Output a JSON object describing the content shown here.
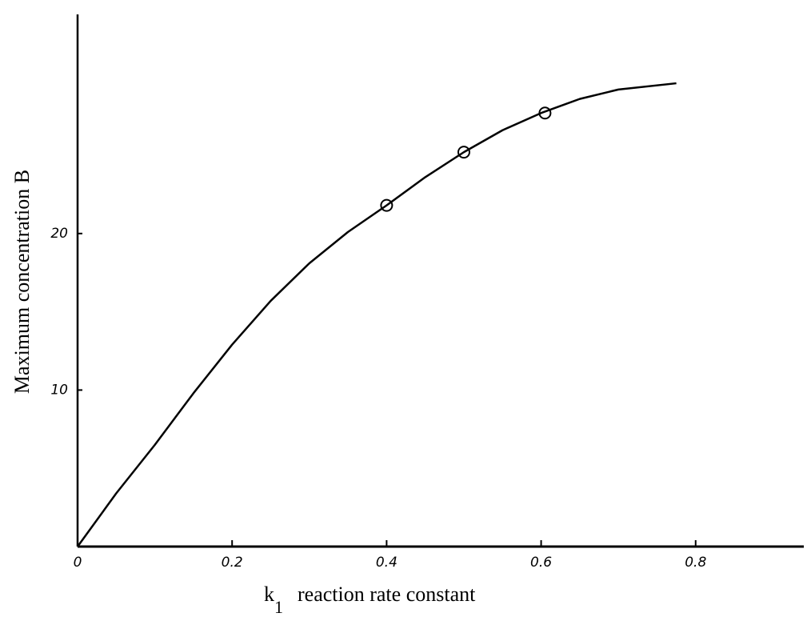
{
  "chart_data": {
    "type": "line",
    "ylabel": "Maximum concentration  B",
    "xlabel": {
      "symbol": "k",
      "subscript": "1",
      "text": "reaction rate constant"
    },
    "x": [
      0,
      0.05,
      0.1,
      0.15,
      0.2,
      0.25,
      0.3,
      0.35,
      0.4,
      0.45,
      0.5,
      0.55,
      0.6,
      0.65,
      0.7,
      0.775
    ],
    "values": [
      0,
      3.4,
      6.5,
      9.8,
      12.9,
      15.7,
      18.1,
      20.1,
      21.8,
      23.6,
      25.2,
      26.6,
      27.7,
      28.6,
      29.2,
      29.6
    ],
    "color": "#000000",
    "markers": {
      "x": [
        0.4,
        0.5,
        0.605
      ],
      "values": [
        21.8,
        25.2,
        27.7
      ]
    },
    "xlim": [
      0,
      0.94
    ],
    "ylim": [
      0,
      34
    ],
    "xticks": [
      0,
      0.2,
      0.4,
      0.6,
      0.8
    ],
    "yticks": [
      10,
      20
    ],
    "grid": false
  }
}
